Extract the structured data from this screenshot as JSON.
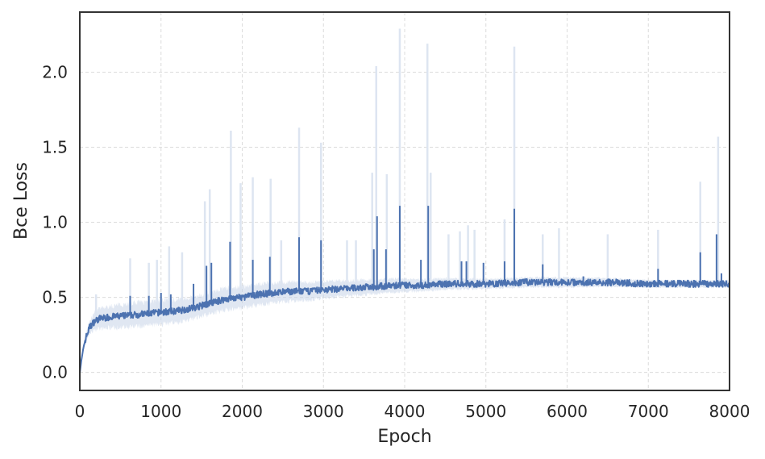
{
  "chart_data": {
    "type": "line",
    "title": "",
    "xlabel": "Epoch",
    "ylabel": "Bce Loss",
    "xlim": [
      0,
      8000
    ],
    "ylim": [
      -0.12,
      2.4
    ],
    "x_ticks": [
      0,
      1000,
      2000,
      3000,
      4000,
      5000,
      6000,
      7000,
      8000
    ],
    "y_ticks": [
      0.0,
      0.5,
      1.0,
      1.5,
      2.0
    ],
    "x_tick_labels": [
      "0",
      "1000",
      "2000",
      "3000",
      "4000",
      "5000",
      "6000",
      "7000",
      "8000"
    ],
    "y_tick_labels": [
      "0.0",
      "0.5",
      "1.0",
      "1.5",
      "2.0"
    ],
    "grid": true,
    "legend": "none",
    "colors": {
      "line": "#4c72b0",
      "band": "#c6d3e8",
      "spike": "#dde5f1",
      "grid": "#dcdcdc",
      "axes": "#333333"
    },
    "series": [
      {
        "mean_curve": {
          "x": [
            0,
            20,
            50,
            80,
            120,
            180,
            250,
            400,
            600,
            800,
            1000,
            1200,
            1400,
            1600,
            1800,
            2000,
            2200,
            2400,
            2600,
            2800,
            3000,
            3300,
            3600,
            3900,
            4200,
            4500,
            5000,
            5500,
            6000,
            6500,
            7000,
            7500,
            8000
          ],
          "y": [
            0.0,
            0.08,
            0.18,
            0.24,
            0.3,
            0.34,
            0.36,
            0.37,
            0.38,
            0.39,
            0.4,
            0.41,
            0.43,
            0.46,
            0.49,
            0.5,
            0.52,
            0.53,
            0.54,
            0.54,
            0.55,
            0.56,
            0.57,
            0.58,
            0.58,
            0.59,
            0.59,
            0.6,
            0.6,
            0.6,
            0.59,
            0.59,
            0.59
          ]
        },
        "band_width": {
          "x": [
            0,
            200,
            600,
            1000,
            1500,
            2000,
            2600,
            3000,
            3600,
            4200,
            5000,
            6000,
            7000,
            8000
          ],
          "y": [
            0.01,
            0.08,
            0.1,
            0.1,
            0.09,
            0.09,
            0.08,
            0.07,
            0.06,
            0.05,
            0.04,
            0.04,
            0.03,
            0.03
          ]
        },
        "mean_spikes": [
          [
            620,
            0.51
          ],
          [
            850,
            0.51
          ],
          [
            1000,
            0.53
          ],
          [
            1120,
            0.52
          ],
          [
            1400,
            0.59
          ],
          [
            1560,
            0.71
          ],
          [
            1620,
            0.73
          ],
          [
            1850,
            0.87
          ],
          [
            2130,
            0.75
          ],
          [
            2340,
            0.77
          ],
          [
            2700,
            0.9
          ],
          [
            2970,
            0.88
          ],
          [
            3620,
            0.82
          ],
          [
            3660,
            1.04
          ],
          [
            3770,
            0.82
          ],
          [
            3940,
            1.11
          ],
          [
            4200,
            0.75
          ],
          [
            4290,
            1.11
          ],
          [
            4700,
            0.74
          ],
          [
            4760,
            0.74
          ],
          [
            4970,
            0.73
          ],
          [
            5230,
            0.74
          ],
          [
            5350,
            1.09
          ],
          [
            5700,
            0.72
          ],
          [
            6200,
            0.64
          ],
          [
            7120,
            0.69
          ],
          [
            7640,
            0.8
          ],
          [
            7840,
            0.92
          ],
          [
            7900,
            0.66
          ]
        ],
        "band_spikes": [
          [
            200,
            0.52
          ],
          [
            620,
            0.76
          ],
          [
            850,
            0.73
          ],
          [
            950,
            0.75
          ],
          [
            1100,
            0.84
          ],
          [
            1260,
            0.8
          ],
          [
            1540,
            1.14
          ],
          [
            1600,
            1.22
          ],
          [
            1860,
            1.61
          ],
          [
            1980,
            1.26
          ],
          [
            2130,
            1.3
          ],
          [
            2350,
            1.29
          ],
          [
            2480,
            0.88
          ],
          [
            2700,
            1.63
          ],
          [
            2970,
            1.53
          ],
          [
            3290,
            0.88
          ],
          [
            3400,
            0.88
          ],
          [
            3600,
            1.33
          ],
          [
            3650,
            2.04
          ],
          [
            3780,
            1.32
          ],
          [
            3940,
            2.29
          ],
          [
            4280,
            2.19
          ],
          [
            4320,
            1.33
          ],
          [
            4540,
            0.92
          ],
          [
            4680,
            0.94
          ],
          [
            4780,
            0.98
          ],
          [
            4860,
            0.95
          ],
          [
            5230,
            1.02
          ],
          [
            5350,
            2.17
          ],
          [
            5700,
            0.92
          ],
          [
            5900,
            0.96
          ],
          [
            6500,
            0.92
          ],
          [
            7120,
            0.95
          ],
          [
            7640,
            1.27
          ],
          [
            7860,
            1.57
          ]
        ]
      }
    ]
  }
}
